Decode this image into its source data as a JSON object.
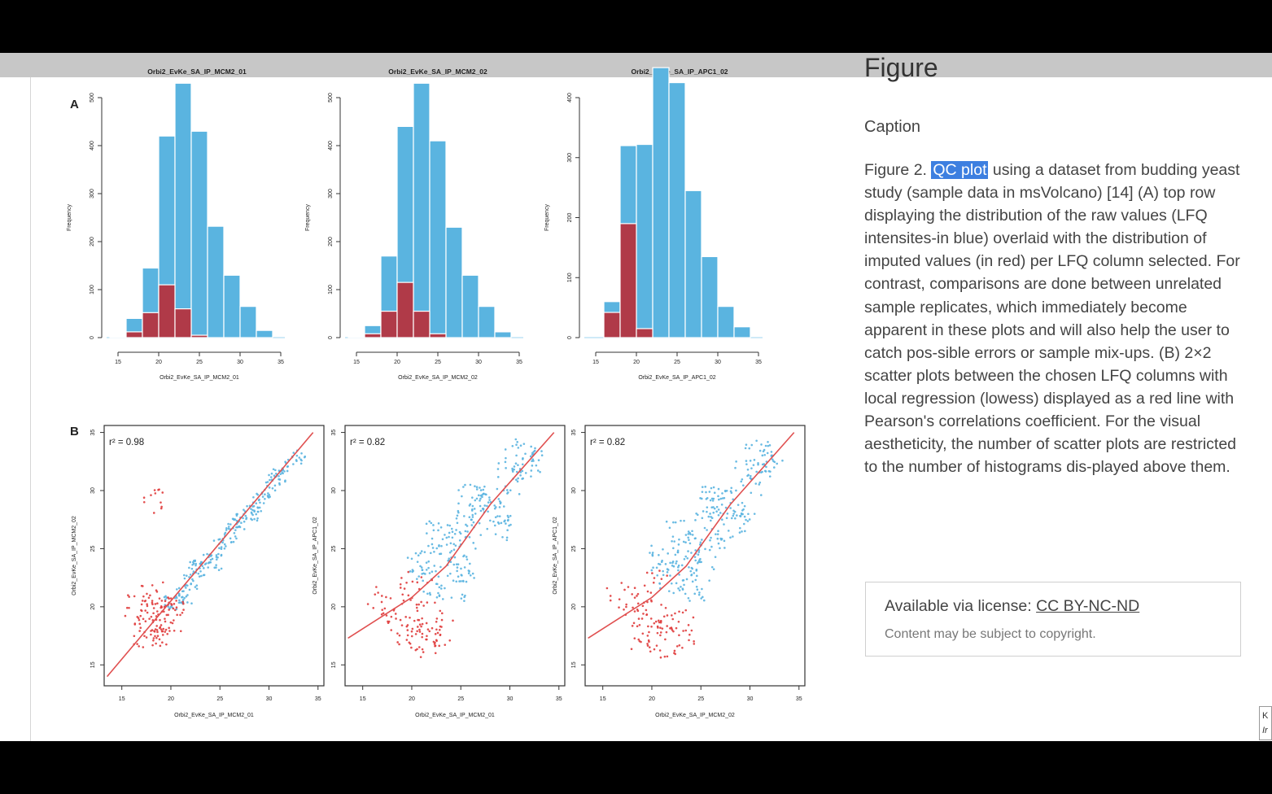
{
  "panel": {
    "heading": "Figure",
    "caption_label": "Caption",
    "caption_prefix": "Figure 2.",
    "caption_highlight": "QC plot",
    "caption_body": " using a dataset from budding yeast study (sample data in msVolcano) [14] (A) top row displaying the distribution of the raw values (LFQ intensites-in blue) overlaid with the distribution of imputed values (in red) per LFQ column selected. For contrast, comparisons are done between unrelated sample replicates, which immediately become apparent in these plots and will also help the user to catch pos-sible errors or sample mix-ups. (B) 2×2 scatter plots between the chosen LFQ columns with local regression (lowess) displayed as a red line with Pearson's correlations coefficient. For the visual aestheticity, the number of scatter plots are restricted to the number of histograms dis-played above them.",
    "license_prefix": "Available via license: ",
    "license_link": "CC BY-NC-ND",
    "license_note": "Content may be subject to copyright."
  },
  "edge_tab": {
    "line1": "K",
    "line2": "Ir"
  },
  "figure": {
    "panel_a_label": "A",
    "panel_b_label": "B",
    "colors": {
      "raw": "#5ab4e0",
      "imputed": "#b03a48",
      "scatter_raw": "#5ab4e0",
      "scatter_imputed": "#e03c3c",
      "lowess": "#e05050"
    }
  },
  "chart_data": [
    {
      "type": "bar",
      "title": "Orbi2_EvKe_SA_IP_MCM2_01",
      "xlabel": "Orbi2_EvKe_SA_IP_MCM2_01",
      "ylabel": "Frequency",
      "xlim": [
        15,
        35
      ],
      "ylim": [
        0,
        500
      ],
      "x_ticks": [
        15,
        20,
        25,
        30,
        35
      ],
      "y_ticks": [
        0,
        100,
        200,
        300,
        400,
        500
      ],
      "bin_edges": [
        14,
        16,
        18,
        20,
        22,
        24,
        26,
        28,
        30,
        32,
        34
      ],
      "series": [
        {
          "values": [
            2,
            40,
            145,
            420,
            530,
            430,
            232,
            130,
            65,
            15
          ]
        },
        {
          "values": [
            0,
            12,
            52,
            110,
            60,
            5,
            0,
            0,
            0,
            0
          ]
        }
      ]
    },
    {
      "type": "bar",
      "title": "Orbi2_EvKe_SA_IP_MCM2_02",
      "xlabel": "Orbi2_EvKe_SA_IP_MCM2_02",
      "ylabel": "Frequency",
      "xlim": [
        15,
        35
      ],
      "ylim": [
        0,
        500
      ],
      "x_ticks": [
        15,
        20,
        25,
        30,
        35
      ],
      "y_ticks": [
        0,
        100,
        200,
        300,
        400,
        500
      ],
      "bin_edges": [
        14,
        16,
        18,
        20,
        22,
        24,
        26,
        28,
        30,
        32,
        34
      ],
      "series": [
        {
          "values": [
            2,
            25,
            170,
            440,
            530,
            410,
            230,
            130,
            65,
            12
          ]
        },
        {
          "values": [
            0,
            8,
            55,
            115,
            55,
            8,
            0,
            0,
            0,
            0
          ]
        }
      ]
    },
    {
      "type": "bar",
      "title": "Orbi2_EvKe_SA_IP_APC1_02",
      "xlabel": "Orbi2_EvKe_SA_IP_APC1_02",
      "ylabel": "Frequency",
      "xlim": [
        15,
        35
      ],
      "ylim": [
        0,
        400
      ],
      "x_ticks": [
        15,
        20,
        25,
        30,
        35
      ],
      "y_ticks": [
        0,
        100,
        200,
        300,
        400
      ],
      "bin_edges": [
        14,
        16,
        18,
        20,
        22,
        24,
        26,
        28,
        30,
        32,
        34
      ],
      "series": [
        {
          "values": [
            0,
            60,
            320,
            322,
            450,
            425,
            245,
            135,
            52,
            18
          ]
        },
        {
          "values": [
            0,
            42,
            190,
            15,
            0,
            0,
            0,
            0,
            0,
            0
          ]
        }
      ]
    },
    {
      "type": "scatter",
      "xlabel": "Orbi2_EvKe_SA_IP_MCM2_01",
      "ylabel": "Orbi2_EvKe_SA_IP_MCM2_02",
      "annotation": "r² = 0.98",
      "xlim": [
        15,
        35
      ],
      "ylim": [
        15,
        35
      ],
      "x_ticks": [
        15,
        20,
        25,
        30,
        35
      ],
      "y_ticks": [
        15,
        20,
        25,
        30,
        35
      ],
      "lowess": [
        [
          13.5,
          14
        ],
        [
          20,
          20.5
        ],
        [
          28,
          28.5
        ],
        [
          34.5,
          35
        ]
      ],
      "raw_points": [
        [
          20,
          20.3
        ],
        [
          21,
          21.2
        ],
        [
          22,
          22.1
        ],
        [
          23,
          23.3
        ],
        [
          24,
          24.0
        ],
        [
          25,
          25.2
        ],
        [
          26,
          26.1
        ],
        [
          27,
          27.3
        ],
        [
          28,
          28.1
        ],
        [
          29,
          29.2
        ],
        [
          30,
          30.1
        ],
        [
          31,
          31.2
        ],
        [
          32,
          32.1
        ],
        [
          33,
          33.0
        ],
        [
          22.5,
          23.5
        ],
        [
          24.5,
          23.8
        ],
        [
          26.5,
          27.2
        ],
        [
          28.5,
          27.9
        ],
        [
          21.5,
          20.9
        ],
        [
          30.5,
          31.0
        ]
      ],
      "imputed_points": [
        [
          18,
          19
        ],
        [
          19,
          18.5
        ],
        [
          17.5,
          20
        ],
        [
          19.5,
          19.8
        ],
        [
          18.5,
          18.2
        ],
        [
          20,
          18.8
        ],
        [
          17,
          17.5
        ],
        [
          18.2,
          21
        ],
        [
          19.2,
          17.8
        ],
        [
          20.5,
          19.6
        ],
        [
          16.5,
          20
        ],
        [
          18,
          28.9
        ]
      ]
    },
    {
      "type": "scatter",
      "xlabel": "Orbi2_EvKe_SA_IP_MCM2_01",
      "ylabel": "Orbi2_EvKe_SA_IP_APC1_02",
      "annotation": "r² = 0.82",
      "xlim": [
        15,
        35
      ],
      "ylim": [
        15,
        35
      ],
      "x_ticks": [
        15,
        20,
        25,
        30,
        35
      ],
      "y_ticks": [
        15,
        20,
        25,
        30,
        35
      ],
      "lowess": [
        [
          13.5,
          17.3
        ],
        [
          20,
          20.8
        ],
        [
          23.5,
          23.5
        ],
        [
          28,
          28.8
        ],
        [
          34.5,
          35
        ]
      ],
      "raw_points": [
        [
          22,
          22.5
        ],
        [
          24,
          25
        ],
        [
          26,
          26.5
        ],
        [
          28,
          29
        ],
        [
          30,
          31
        ],
        [
          25,
          23.5
        ],
        [
          27,
          28.8
        ],
        [
          23,
          26
        ],
        [
          29,
          27
        ],
        [
          31,
          32.5
        ],
        [
          26,
          29
        ],
        [
          24,
          22
        ],
        [
          21,
          24
        ],
        [
          32,
          33
        ]
      ],
      "imputed_points": [
        [
          19,
          19
        ],
        [
          20,
          18
        ],
        [
          21,
          17.5
        ],
        [
          22,
          19
        ],
        [
          18.5,
          20.5
        ],
        [
          23,
          18.2
        ],
        [
          20.5,
          21.5
        ],
        [
          19.5,
          17.2
        ],
        [
          17,
          20.2
        ],
        [
          22.5,
          17
        ]
      ]
    },
    {
      "type": "scatter",
      "xlabel": "Orbi2_EvKe_SA_IP_MCM2_02",
      "ylabel": "Orbi2_EvKe_SA_IP_APC1_02",
      "annotation": "r² = 0.82",
      "xlim": [
        15,
        35
      ],
      "ylim": [
        15,
        35
      ],
      "x_ticks": [
        15,
        20,
        25,
        30,
        35
      ],
      "y_ticks": [
        15,
        20,
        25,
        30,
        35
      ],
      "lowess": [
        [
          13.5,
          17.3
        ],
        [
          20,
          20.8
        ],
        [
          23.5,
          23.5
        ],
        [
          28,
          28.8
        ],
        [
          34.5,
          35
        ]
      ],
      "raw_points": [
        [
          22,
          22.5
        ],
        [
          24,
          25
        ],
        [
          26,
          26.5
        ],
        [
          28,
          29
        ],
        [
          30,
          31
        ],
        [
          25,
          23.5
        ],
        [
          27,
          28.8
        ],
        [
          23,
          26
        ],
        [
          29,
          27
        ],
        [
          31,
          32.5
        ],
        [
          26,
          29
        ],
        [
          24,
          22
        ],
        [
          21,
          24
        ],
        [
          32,
          33
        ]
      ],
      "imputed_points": [
        [
          19,
          19
        ],
        [
          20,
          18
        ],
        [
          21,
          17.5
        ],
        [
          22,
          19
        ],
        [
          18.5,
          20.5
        ],
        [
          23,
          18.2
        ],
        [
          20.5,
          21.5
        ],
        [
          19.5,
          17.2
        ],
        [
          17,
          20.2
        ],
        [
          22.5,
          17
        ]
      ]
    }
  ]
}
